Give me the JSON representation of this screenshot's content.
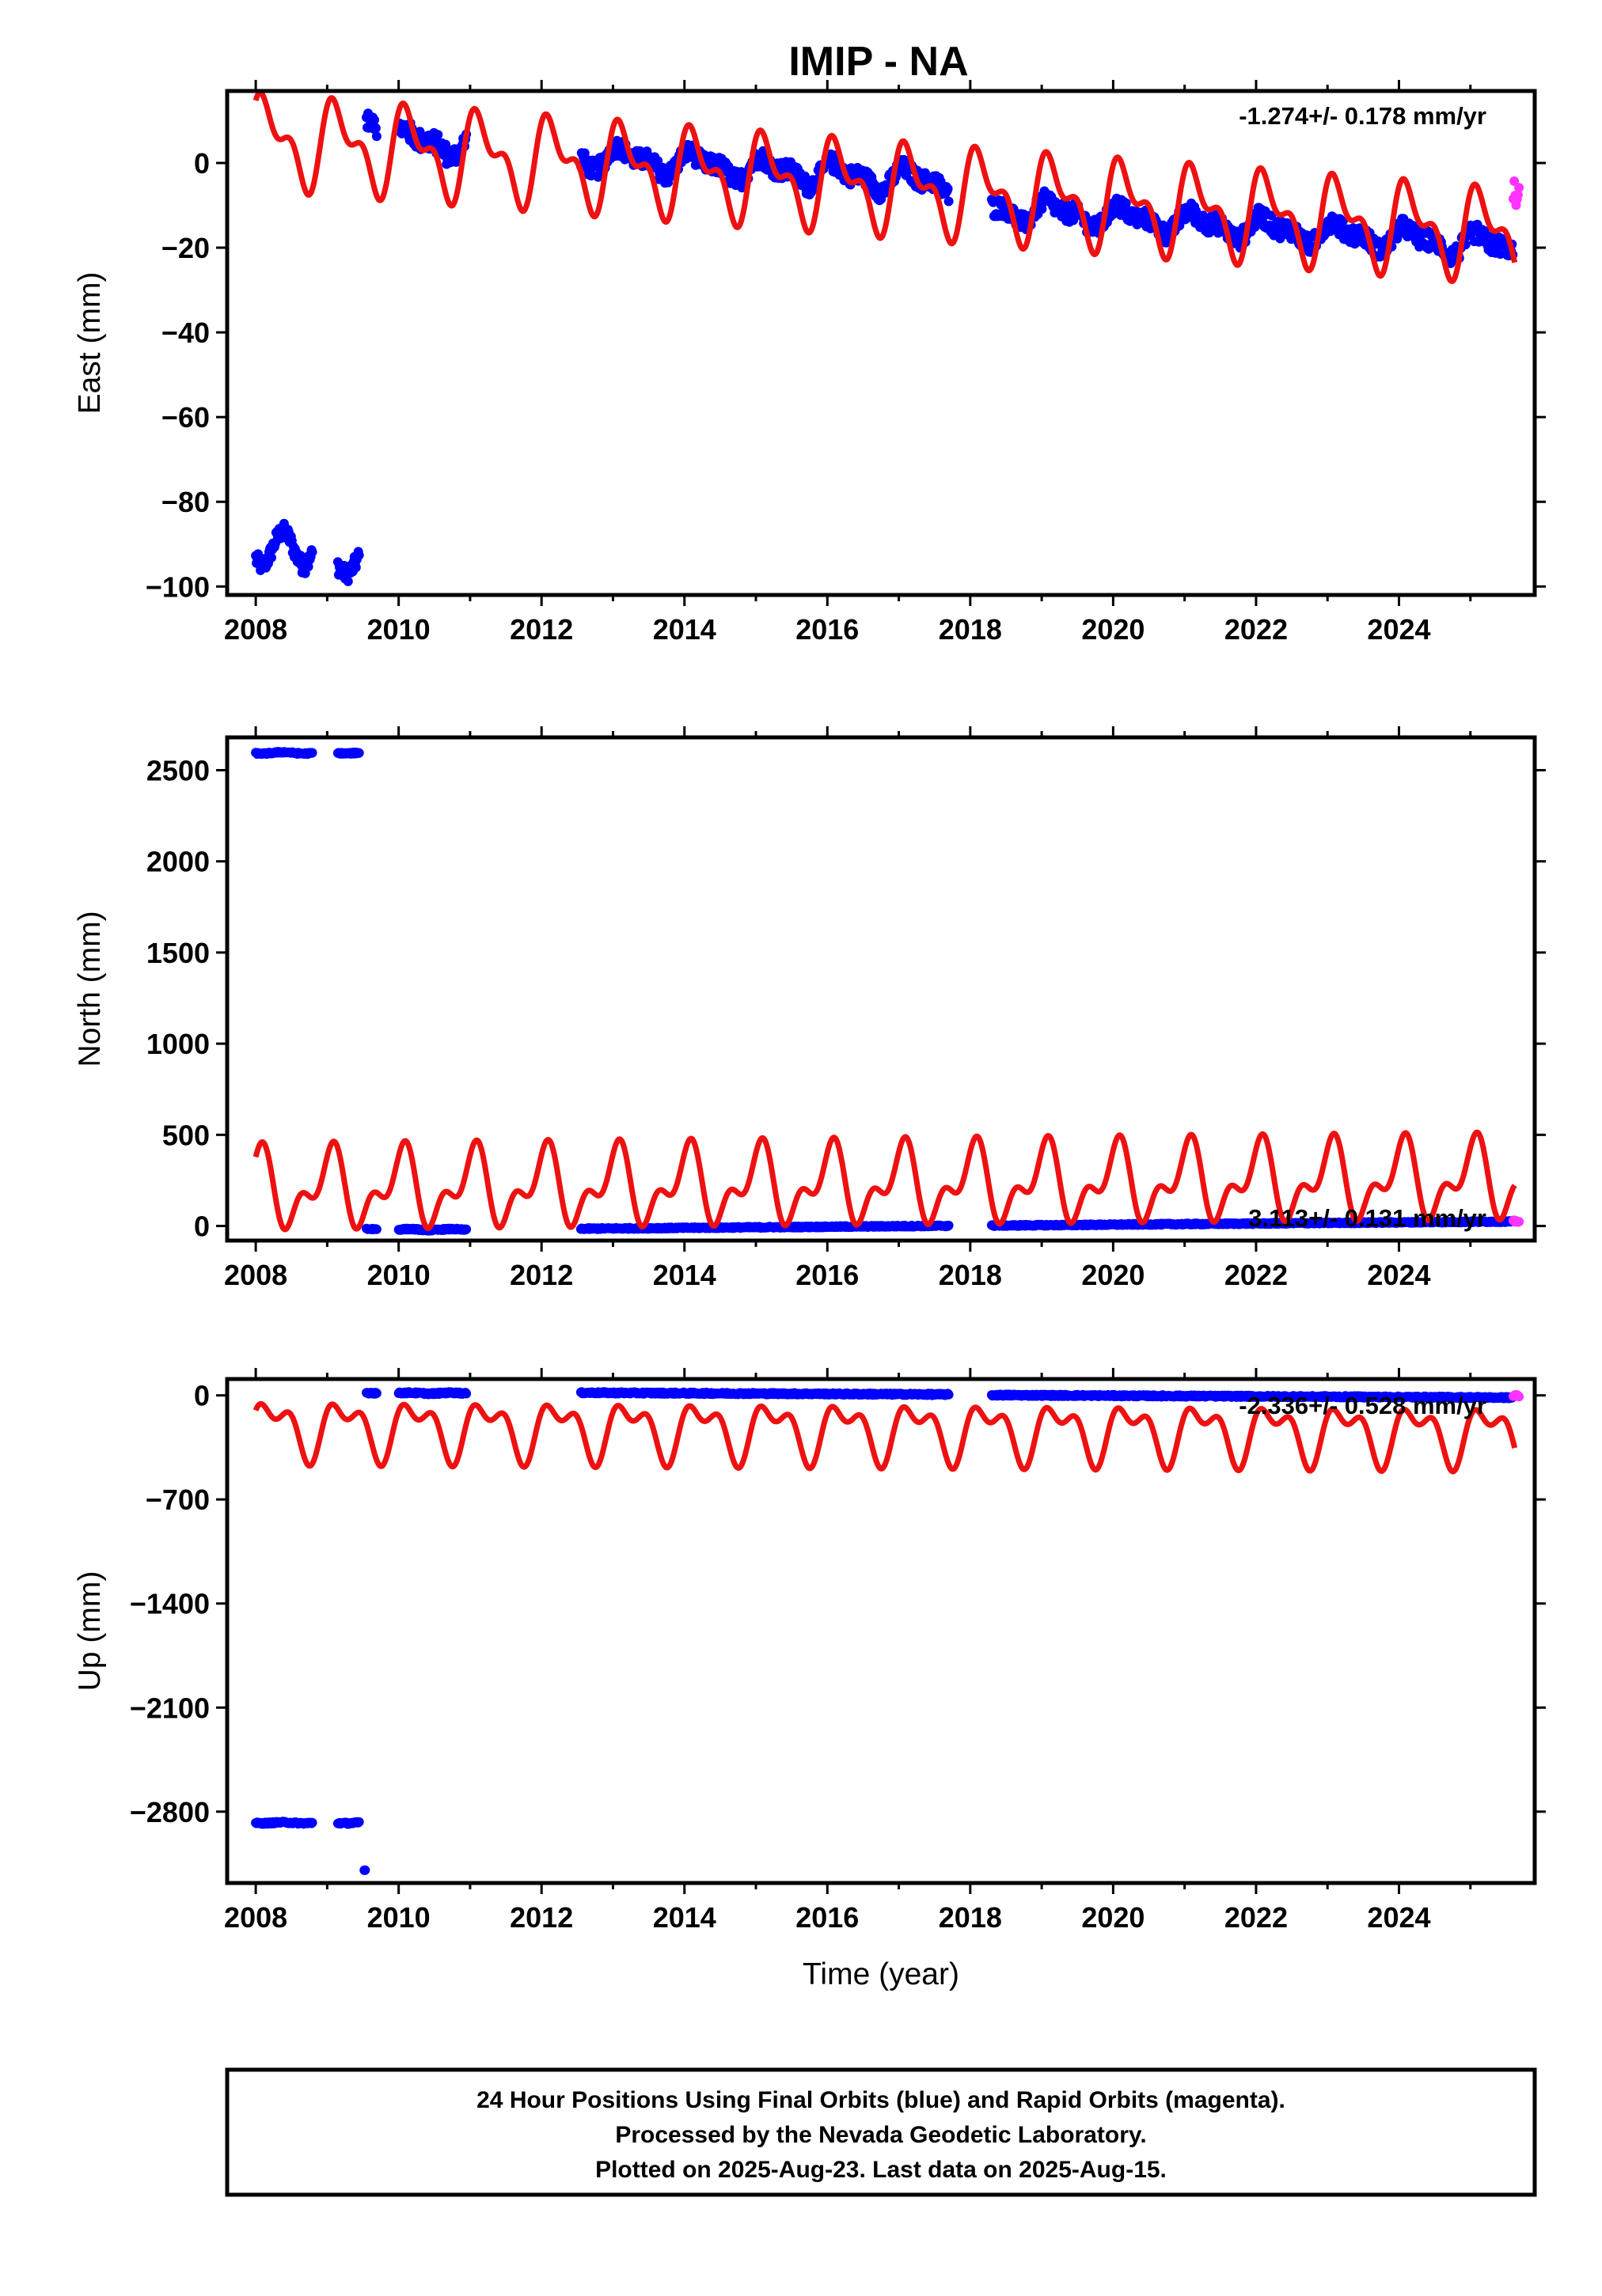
{
  "figure": {
    "title": "IMIP - NA",
    "footer": [
      "24 Hour Positions Using Final Orbits (blue) and Rapid Orbits (magenta).",
      "Processed by the Nevada Geodetic Laboratory.",
      "Plotted on 2025-Aug-23. Last data on 2025-Aug-15."
    ]
  },
  "colors": {
    "final_orbits": "#0000ff",
    "rapid_orbits": "#ff33ff",
    "model": "#ee1111"
  },
  "chart_data": [
    {
      "type": "scatter",
      "ylabel": "East (mm)",
      "xlabel": "",
      "rate": "-1.274+/- 0.178 mm/yr",
      "xlim": [
        2007.6,
        2025.9
      ],
      "ylim": [
        -102,
        17
      ],
      "xticks": [
        2008,
        2010,
        2012,
        2014,
        2016,
        2018,
        2020,
        2022,
        2024
      ],
      "yticks": [
        0,
        -20,
        -40,
        -60,
        -80,
        -100
      ],
      "grid": false,
      "model": {
        "name": "model",
        "base": 5.5,
        "slope": -1.274,
        "t0": 2008.0,
        "a1": 8.5,
        "p1": 0.55,
        "a2": 5.0,
        "p2": 1.3,
        "end": 2025.62
      },
      "segments": [
        {
          "t": [
            2008.0,
            2008.8
          ],
          "kind": "offset",
          "c0": -91,
          "wave": 4,
          "noise": 2
        },
        {
          "t": [
            2009.15,
            2009.45
          ],
          "kind": "offset",
          "c0": -94,
          "wave": 3,
          "noise": 2
        },
        {
          "t": [
            2009.55,
            2009.7
          ],
          "kind": "offset",
          "c0": 8,
          "wave": 2,
          "noise": 2
        },
        {
          "t": [
            2010.0,
            2010.95
          ],
          "kind": "model",
          "c0": 8,
          "wave": 4,
          "noise": 2.5
        },
        {
          "t": [
            2012.55,
            2017.7
          ],
          "kind": "model",
          "c0": 7.5,
          "wave": 3,
          "noise": 2.2
        },
        {
          "t": [
            2018.3,
            2025.6
          ],
          "kind": "model",
          "c0": 2.5,
          "wave": 3,
          "noise": 2.2
        }
      ],
      "rapid": {
        "t": [
          2025.6,
          2025.68
        ],
        "y": [
          -12,
          -4
        ]
      }
    },
    {
      "type": "scatter",
      "ylabel": "North (mm)",
      "xlabel": "",
      "rate": "3.113+/- 0.131 mm/yr",
      "xlim": [
        2007.6,
        2025.9
      ],
      "ylim": [
        -80,
        2680
      ],
      "xticks": [
        2008,
        2010,
        2012,
        2014,
        2016,
        2018,
        2020,
        2022,
        2024
      ],
      "yticks": [
        0,
        500,
        1000,
        1500,
        2000,
        2500
      ],
      "grid": false,
      "model": {
        "name": "model",
        "base": 200,
        "slope": 3.113,
        "t0": 2008.0,
        "a1": 170,
        "p1": 1.4,
        "a2": 110,
        "p2": 0.1,
        "end": 2025.62
      },
      "segments": [
        {
          "t": [
            2008.0,
            2008.8
          ],
          "kind": "offset",
          "c0": 2595,
          "wave": 4,
          "noise": 4
        },
        {
          "t": [
            2009.15,
            2009.45
          ],
          "kind": "offset",
          "c0": 2595,
          "wave": 3,
          "noise": 4
        },
        {
          "t": [
            2009.55,
            2009.7
          ],
          "kind": "offset",
          "c0": -18,
          "wave": 2,
          "noise": 4
        },
        {
          "t": [
            2010.0,
            2010.95
          ],
          "kind": "offset",
          "c0": -20,
          "wave": 3,
          "noise": 4
        },
        {
          "t": [
            2012.55,
            2017.7
          ],
          "kind": "trend",
          "c0": -15,
          "slope": 3.113,
          "t0": 2012.55,
          "noise": 4
        },
        {
          "t": [
            2018.3,
            2025.6
          ],
          "kind": "trend",
          "c0": 2,
          "slope": 3.113,
          "t0": 2018.3,
          "noise": 4
        }
      ],
      "rapid": {
        "t": [
          2025.6,
          2025.68
        ],
        "y": [
          20,
          32
        ]
      }
    },
    {
      "type": "scatter",
      "ylabel": "Up (mm)",
      "xlabel": "Time (year)",
      "rate": "-2.336+/- 0.528 mm/yr",
      "xlim": [
        2007.6,
        2025.9
      ],
      "ylim": [
        -3280,
        110
      ],
      "xticks": [
        2008,
        2010,
        2012,
        2014,
        2016,
        2018,
        2020,
        2022,
        2024
      ],
      "yticks": [
        0,
        -700,
        -1400,
        -2100,
        -2800
      ],
      "grid": false,
      "model": {
        "name": "model",
        "base": -215,
        "slope": -2.336,
        "t0": 2008.0,
        "a1": 160,
        "p1": 0.1,
        "a2": 100,
        "p2": 1.4,
        "end": 2025.62
      },
      "segments": [
        {
          "t": [
            2008.0,
            2008.8
          ],
          "kind": "offset",
          "c0": -2875,
          "wave": 3,
          "noise": 6
        },
        {
          "t": [
            2009.15,
            2009.45
          ],
          "kind": "offset",
          "c0": -2875,
          "wave": 3,
          "noise": 6
        },
        {
          "t": [
            2009.52,
            2009.54
          ],
          "kind": "offset",
          "c0": -3195,
          "wave": 1,
          "noise": 3
        },
        {
          "t": [
            2009.55,
            2009.7
          ],
          "kind": "offset",
          "c0": 15,
          "wave": 2,
          "noise": 6
        },
        {
          "t": [
            2010.0,
            2010.95
          ],
          "kind": "offset",
          "c0": 15,
          "wave": 3,
          "noise": 6
        },
        {
          "t": [
            2012.55,
            2017.7
          ],
          "kind": "trend",
          "c0": 18,
          "slope": -2.336,
          "t0": 2012.55,
          "noise": 6
        },
        {
          "t": [
            2018.3,
            2025.6
          ],
          "kind": "trend",
          "c0": 2,
          "slope": -2.336,
          "t0": 2018.3,
          "noise": 6
        }
      ],
      "rapid": {
        "t": [
          2025.6,
          2025.68
        ],
        "y": [
          -10,
          10
        ]
      }
    }
  ]
}
